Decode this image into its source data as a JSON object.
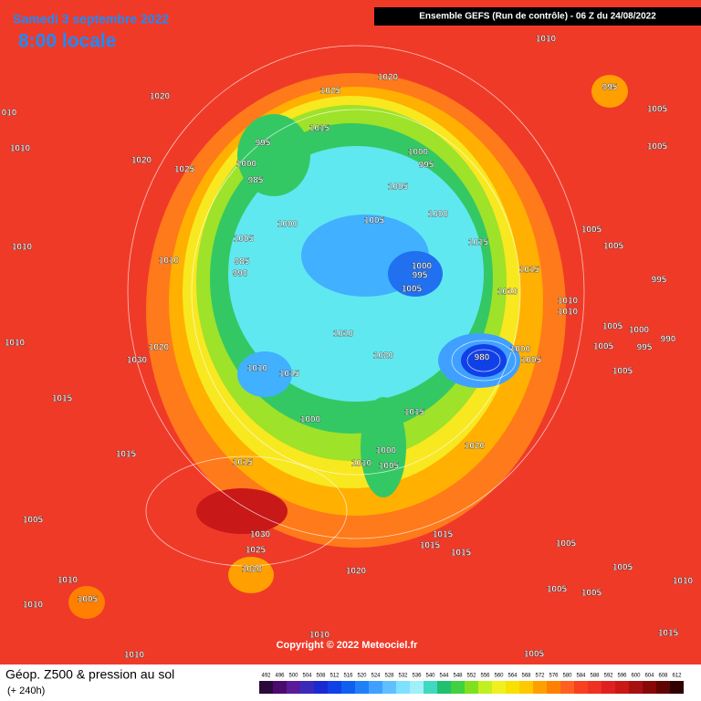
{
  "header": {
    "date": "Samedi 3 septembre 2022",
    "time": "8:00 locale",
    "model": "Ensemble GEFS  (Run de contrôle)  -  06 Z du 24/08/2022"
  },
  "footer": {
    "title": "Géop. Z500 & pression au sol",
    "lead": "(+ 240h)",
    "copyright": "Copyright © 2022 Meteociel.fr"
  },
  "legend": {
    "ticks": [
      492,
      496,
      500,
      504,
      508,
      512,
      516,
      520,
      524,
      528,
      532,
      536,
      540,
      544,
      548,
      552,
      556,
      560,
      564,
      568,
      572,
      576,
      580,
      584,
      588,
      592,
      596,
      600,
      604,
      608,
      612
    ],
    "colors": [
      "#2a0a3a",
      "#4b0a6e",
      "#5a1a9a",
      "#3a2aba",
      "#1a2ad0",
      "#1040e8",
      "#1060f0",
      "#2080f8",
      "#40a0ff",
      "#60c0ff",
      "#80e0ff",
      "#a0f0f8",
      "#40d8c0",
      "#20c070",
      "#40d040",
      "#80e020",
      "#c0f020",
      "#f0f020",
      "#f8e000",
      "#ffc800",
      "#ffa000",
      "#ff8000",
      "#ff6020",
      "#f84020",
      "#f03020",
      "#e02020",
      "#c81818",
      "#a81010",
      "#880808",
      "#600404",
      "#300000"
    ]
  },
  "pressure_labels": [
    "1010",
    "1020",
    "1025",
    "1020",
    "010",
    "1010",
    "1020",
    "1025",
    "1015",
    "995",
    "1000",
    "985",
    "1000",
    "995",
    "1005",
    "1005",
    "1000",
    "1015",
    "1000",
    "1005",
    "985",
    "990",
    "1010",
    "1010",
    "1000",
    "995",
    "1005",
    "1010",
    "1015",
    "1010",
    "1010",
    "1005",
    "1005",
    "1005",
    "1005",
    "995",
    "995",
    "1005",
    "1000",
    "995",
    "990",
    "1005",
    "1005",
    "1010",
    "1020",
    "980",
    "1000",
    "1005",
    "1020",
    "1030",
    "1010",
    "1010",
    "1015",
    "1015",
    "1015",
    "1000",
    "1000",
    "1010",
    "1005",
    "1020",
    "1015",
    "1015",
    "1005",
    "1030",
    "1025",
    "1020",
    "1020",
    "1015",
    "1015",
    "1015",
    "1005",
    "1005",
    "1005",
    "1005",
    "1010",
    "1010",
    "1005",
    "1010",
    "1010",
    "1010",
    "1005",
    "1015"
  ]
}
